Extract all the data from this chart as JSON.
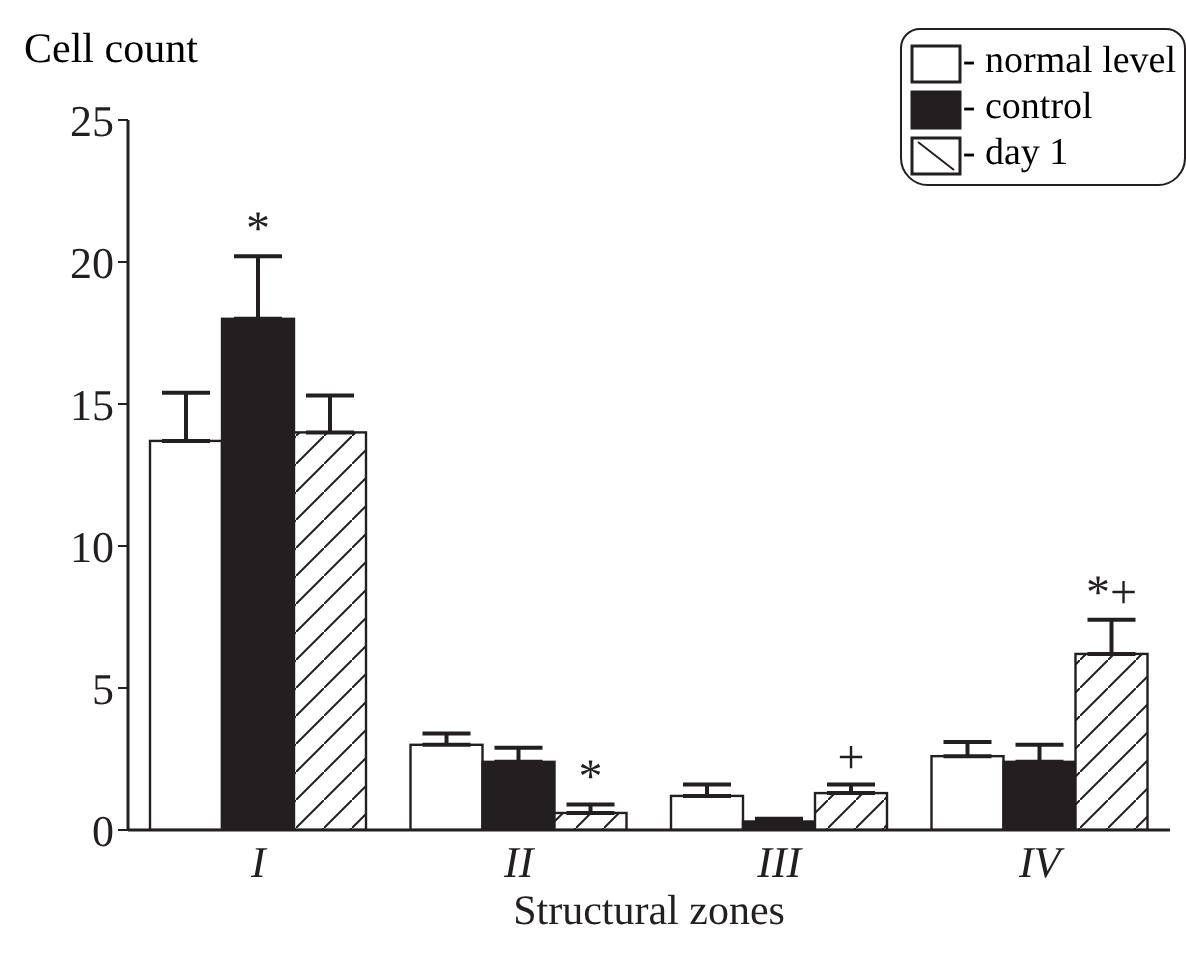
{
  "chart_data": {
    "type": "bar",
    "ylabel": "Cell count",
    "xlabel": "Structural zones",
    "categories": [
      "I",
      "II",
      "III",
      "IV"
    ],
    "series": [
      {
        "name": "- normal level",
        "color": "#ffffff",
        "values": [
          13.7,
          3.0,
          1.2,
          2.6
        ],
        "errors": [
          1.7,
          0.4,
          0.4,
          0.5
        ]
      },
      {
        "name": "- control",
        "color": "#231f20",
        "values": [
          18.0,
          2.4,
          0.3,
          2.4
        ],
        "errors": [
          2.2,
          0.5,
          0.1,
          0.6
        ],
        "value_labels": [
          "*",
          null,
          null,
          null
        ]
      },
      {
        "name": "- day 1",
        "color": "#ffffff",
        "values": [
          14.0,
          0.6,
          1.3,
          6.2
        ],
        "errors": [
          1.3,
          0.3,
          0.3,
          1.2
        ],
        "value_labels": [
          null,
          "*",
          "+",
          "*+"
        ]
      }
    ],
    "ylim": [
      0,
      25
    ],
    "yticks": [
      0,
      5,
      10,
      15,
      20,
      25
    ],
    "legend": "top right"
  }
}
